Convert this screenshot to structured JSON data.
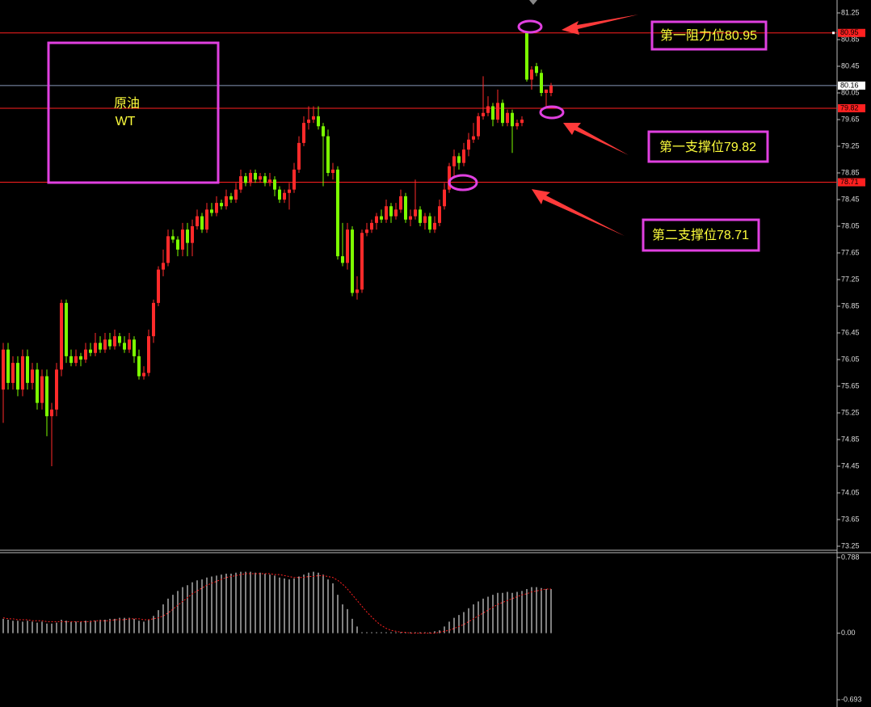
{
  "chart_data": {
    "type": "candlestick",
    "up_color": "#ff2a2a",
    "down_color": "#7cfc00",
    "ylim": [
      73.25,
      81.25
    ],
    "yticks": [
      81.25,
      80.85,
      80.45,
      {
        "value": 80.05,
        "label": "80.05"
      },
      79.65,
      79.25,
      78.85,
      78.45,
      {
        "value": 78.05,
        "label": "78.05"
      },
      77.65,
      77.25,
      76.85,
      76.45,
      {
        "value": 76.05,
        "label": "76.05"
      },
      75.65,
      75.25,
      74.85,
      74.45,
      {
        "value": 74.05,
        "label": "74.05"
      },
      73.65,
      73.25
    ],
    "levels": [
      {
        "value": 80.95,
        "color": "#ff2020"
      },
      {
        "value": 80.16,
        "color": "#8898b8"
      },
      {
        "value": 79.82,
        "color": "#ff2020"
      },
      {
        "value": 78.71,
        "color": "#ff2020"
      }
    ],
    "box_lines": [
      "原油",
      "WT"
    ],
    "annotations": [
      "第一阻力位80.95",
      "第一支撑位79.82",
      "第二支撑位78.71"
    ],
    "candles": [
      [
        75.6,
        76.3,
        75.1,
        76.2
      ],
      [
        76.2,
        76.3,
        75.6,
        75.7
      ],
      [
        75.7,
        76.1,
        75.6,
        76.0
      ],
      [
        76.0,
        76.1,
        75.5,
        75.6
      ],
      [
        75.6,
        76.2,
        75.5,
        76.1
      ],
      [
        76.1,
        76.2,
        75.6,
        75.7
      ],
      [
        75.7,
        76.0,
        75.6,
        75.9
      ],
      [
        75.9,
        76.0,
        75.3,
        75.4
      ],
      [
        75.4,
        75.9,
        75.3,
        75.8
      ],
      [
        75.8,
        75.9,
        74.9,
        75.2
      ],
      [
        75.2,
        75.4,
        74.45,
        75.3
      ],
      [
        75.3,
        76.0,
        75.2,
        75.9
      ],
      [
        75.9,
        76.95,
        75.8,
        76.9
      ],
      [
        76.9,
        76.95,
        76.0,
        76.1
      ],
      [
        76.1,
        76.2,
        75.95,
        76.0
      ],
      [
        76.0,
        76.2,
        75.95,
        76.1
      ],
      [
        76.1,
        76.15,
        75.95,
        76.05
      ],
      [
        76.05,
        76.3,
        76.0,
        76.2
      ],
      [
        76.2,
        76.3,
        76.1,
        76.15
      ],
      [
        76.15,
        76.45,
        76.1,
        76.3
      ],
      [
        76.3,
        76.4,
        76.15,
        76.2
      ],
      [
        76.2,
        76.45,
        76.15,
        76.35
      ],
      [
        76.35,
        76.45,
        76.2,
        76.25
      ],
      [
        76.25,
        76.5,
        76.2,
        76.4
      ],
      [
        76.4,
        76.45,
        76.25,
        76.3
      ],
      [
        76.3,
        76.4,
        76.15,
        76.2
      ],
      [
        76.2,
        76.45,
        76.15,
        76.35
      ],
      [
        76.35,
        76.4,
        76.0,
        76.1
      ],
      [
        76.1,
        76.2,
        75.75,
        75.8
      ],
      [
        75.8,
        75.95,
        75.75,
        75.85
      ],
      [
        75.85,
        76.5,
        75.8,
        76.4
      ],
      [
        76.4,
        76.95,
        76.3,
        76.9
      ],
      [
        76.9,
        77.45,
        76.85,
        77.4
      ],
      [
        77.4,
        77.7,
        77.3,
        77.5
      ],
      [
        77.5,
        78.0,
        77.45,
        77.9
      ],
      [
        77.9,
        78.0,
        77.8,
        77.85
      ],
      [
        77.85,
        77.9,
        77.6,
        77.7
      ],
      [
        77.7,
        78.1,
        77.6,
        78.0
      ],
      [
        78.0,
        78.1,
        77.6,
        77.8
      ],
      [
        77.8,
        78.15,
        77.6,
        78.05
      ],
      [
        78.05,
        78.3,
        78.0,
        78.2
      ],
      [
        78.2,
        78.25,
        77.95,
        78.0
      ],
      [
        78.0,
        78.4,
        77.95,
        78.3
      ],
      [
        78.3,
        78.4,
        78.2,
        78.25
      ],
      [
        78.25,
        78.5,
        78.2,
        78.4
      ],
      [
        78.4,
        78.45,
        78.3,
        78.35
      ],
      [
        78.35,
        78.6,
        78.3,
        78.5
      ],
      [
        78.5,
        78.55,
        78.4,
        78.45
      ],
      [
        78.45,
        78.7,
        78.4,
        78.6
      ],
      [
        78.6,
        78.9,
        78.55,
        78.8
      ],
      [
        78.8,
        78.85,
        78.65,
        78.7
      ],
      [
        78.7,
        78.9,
        78.65,
        78.85
      ],
      [
        78.85,
        78.9,
        78.7,
        78.75
      ],
      [
        78.75,
        78.85,
        78.7,
        78.8
      ],
      [
        78.8,
        78.85,
        78.65,
        78.7
      ],
      [
        78.7,
        78.85,
        78.65,
        78.75
      ],
      [
        78.75,
        78.8,
        78.5,
        78.6
      ],
      [
        78.6,
        78.65,
        78.4,
        78.45
      ],
      [
        78.45,
        78.6,
        78.4,
        78.55
      ],
      [
        78.55,
        78.7,
        78.3,
        78.6
      ],
      [
        78.6,
        79.0,
        78.55,
        78.9
      ],
      [
        78.9,
        79.4,
        78.85,
        79.3
      ],
      [
        79.3,
        79.7,
        79.25,
        79.6
      ],
      [
        79.6,
        79.85,
        79.5,
        79.65
      ],
      [
        79.65,
        79.85,
        79.6,
        79.7
      ],
      [
        79.7,
        79.85,
        79.5,
        79.55
      ],
      [
        79.55,
        79.6,
        78.65,
        79.4
      ],
      [
        79.4,
        79.5,
        78.8,
        78.85
      ],
      [
        78.85,
        79.0,
        78.75,
        78.9
      ],
      [
        78.9,
        78.95,
        77.55,
        77.6
      ],
      [
        77.6,
        78.1,
        77.45,
        77.5
      ],
      [
        77.5,
        78.1,
        77.4,
        78.0
      ],
      [
        78.0,
        78.05,
        77.0,
        77.05
      ],
      [
        77.05,
        77.3,
        76.95,
        77.1
      ],
      [
        77.1,
        78.0,
        77.05,
        77.95
      ],
      [
        77.95,
        78.1,
        77.9,
        78.0
      ],
      [
        78.0,
        78.15,
        77.95,
        78.1
      ],
      [
        78.1,
        78.25,
        78.0,
        78.2
      ],
      [
        78.2,
        78.3,
        78.1,
        78.15
      ],
      [
        78.15,
        78.45,
        78.1,
        78.35
      ],
      [
        78.35,
        78.4,
        78.1,
        78.2
      ],
      [
        78.2,
        78.4,
        78.15,
        78.3
      ],
      [
        78.3,
        78.6,
        78.25,
        78.5
      ],
      [
        78.5,
        78.55,
        78.1,
        78.15
      ],
      [
        78.15,
        78.3,
        78.05,
        78.2
      ],
      [
        78.2,
        78.75,
        78.15,
        78.3
      ],
      [
        78.3,
        78.35,
        78.05,
        78.1
      ],
      [
        78.1,
        78.25,
        78.0,
        78.2
      ],
      [
        78.2,
        78.25,
        77.95,
        78.0
      ],
      [
        78.0,
        78.2,
        77.95,
        78.1
      ],
      [
        78.1,
        78.45,
        78.05,
        78.35
      ],
      [
        78.35,
        78.7,
        78.3,
        78.6
      ],
      [
        78.6,
        79.0,
        78.55,
        78.95
      ],
      [
        78.95,
        79.2,
        78.8,
        79.1
      ],
      [
        79.1,
        79.15,
        78.9,
        79.0
      ],
      [
        79.0,
        79.3,
        78.95,
        79.2
      ],
      [
        79.2,
        79.45,
        79.1,
        79.35
      ],
      [
        79.35,
        79.6,
        79.3,
        79.4
      ],
      [
        79.4,
        79.75,
        79.35,
        79.7
      ],
      [
        79.7,
        80.3,
        79.65,
        79.75
      ],
      [
        79.75,
        80.0,
        79.7,
        79.85
      ],
      [
        79.85,
        79.9,
        79.55,
        79.65
      ],
      [
        79.65,
        80.1,
        79.6,
        79.9
      ],
      [
        79.9,
        79.95,
        79.55,
        79.6
      ],
      [
        79.6,
        79.8,
        79.55,
        79.75
      ],
      [
        79.75,
        79.8,
        79.15,
        79.55
      ],
      [
        79.55,
        79.65,
        79.5,
        79.6
      ],
      [
        79.6,
        79.7,
        79.55,
        79.65
      ],
      [
        80.95,
        80.95,
        80.22,
        80.25
      ],
      [
        80.25,
        80.45,
        80.1,
        80.4
      ],
      [
        80.45,
        80.5,
        80.3,
        80.35
      ],
      [
        80.35,
        80.4,
        80.0,
        80.05
      ],
      [
        80.05,
        80.1,
        79.85,
        80.1
      ],
      [
        80.05,
        80.2,
        80.0,
        80.16
      ]
    ],
    "macd": {
      "ylim": [
        -0.693,
        0.788
      ],
      "yticks": [
        0.788,
        {
          "value": 0,
          "label": "0.00"
        },
        -0.693
      ],
      "histogram_color": "#ffffff",
      "signal_color": "#ff2020",
      "histogram": [
        0.15,
        0.14,
        0.13,
        0.13,
        0.12,
        0.13,
        0.12,
        0.11,
        0.12,
        0.1,
        0.1,
        0.11,
        0.14,
        0.13,
        0.12,
        0.12,
        0.12,
        0.13,
        0.13,
        0.13,
        0.14,
        0.14,
        0.15,
        0.15,
        0.16,
        0.16,
        0.16,
        0.15,
        0.13,
        0.12,
        0.14,
        0.18,
        0.24,
        0.3,
        0.36,
        0.4,
        0.44,
        0.48,
        0.5,
        0.53,
        0.55,
        0.56,
        0.58,
        0.59,
        0.6,
        0.61,
        0.62,
        0.62,
        0.63,
        0.64,
        0.64,
        0.64,
        0.63,
        0.63,
        0.62,
        0.61,
        0.6,
        0.58,
        0.57,
        0.56,
        0.57,
        0.59,
        0.61,
        0.63,
        0.64,
        0.63,
        0.61,
        0.56,
        0.52,
        0.4,
        0.3,
        0.25,
        0.15,
        0.07,
        0.01,
        0.01,
        0.01,
        0.01,
        0.01,
        0.01,
        0.01,
        0.01,
        0.01,
        0.01,
        0.01,
        0.01,
        0.01,
        0.01,
        0.01,
        0.02,
        0.03,
        0.07,
        0.12,
        0.16,
        0.19,
        0.22,
        0.26,
        0.3,
        0.33,
        0.36,
        0.38,
        0.4,
        0.42,
        0.42,
        0.43,
        0.42,
        0.43,
        0.44,
        0.46,
        0.48,
        0.48,
        0.47,
        0.46,
        0.46
      ],
      "signal": [
        0.16,
        0.15,
        0.15,
        0.14,
        0.14,
        0.14,
        0.13,
        0.13,
        0.13,
        0.12,
        0.12,
        0.12,
        0.12,
        0.12,
        0.12,
        0.12,
        0.12,
        0.12,
        0.12,
        0.13,
        0.13,
        0.13,
        0.13,
        0.14,
        0.14,
        0.14,
        0.15,
        0.15,
        0.15,
        0.14,
        0.14,
        0.15,
        0.16,
        0.18,
        0.21,
        0.25,
        0.29,
        0.33,
        0.37,
        0.41,
        0.44,
        0.47,
        0.5,
        0.52,
        0.54,
        0.56,
        0.58,
        0.59,
        0.6,
        0.61,
        0.62,
        0.62,
        0.62,
        0.62,
        0.62,
        0.62,
        0.61,
        0.61,
        0.6,
        0.59,
        0.58,
        0.58,
        0.58,
        0.59,
        0.59,
        0.6,
        0.6,
        0.59,
        0.58,
        0.55,
        0.51,
        0.46,
        0.4,
        0.34,
        0.28,
        0.22,
        0.17,
        0.12,
        0.08,
        0.05,
        0.03,
        0.02,
        0.01,
        0.01,
        0,
        0,
        0,
        0,
        0,
        0,
        0.01,
        0.02,
        0.03,
        0.05,
        0.07,
        0.09,
        0.12,
        0.15,
        0.18,
        0.21,
        0.24,
        0.27,
        0.3,
        0.32,
        0.34,
        0.36,
        0.38,
        0.4,
        0.41,
        0.43,
        0.44,
        0.45,
        0.46,
        0.46
      ]
    }
  }
}
